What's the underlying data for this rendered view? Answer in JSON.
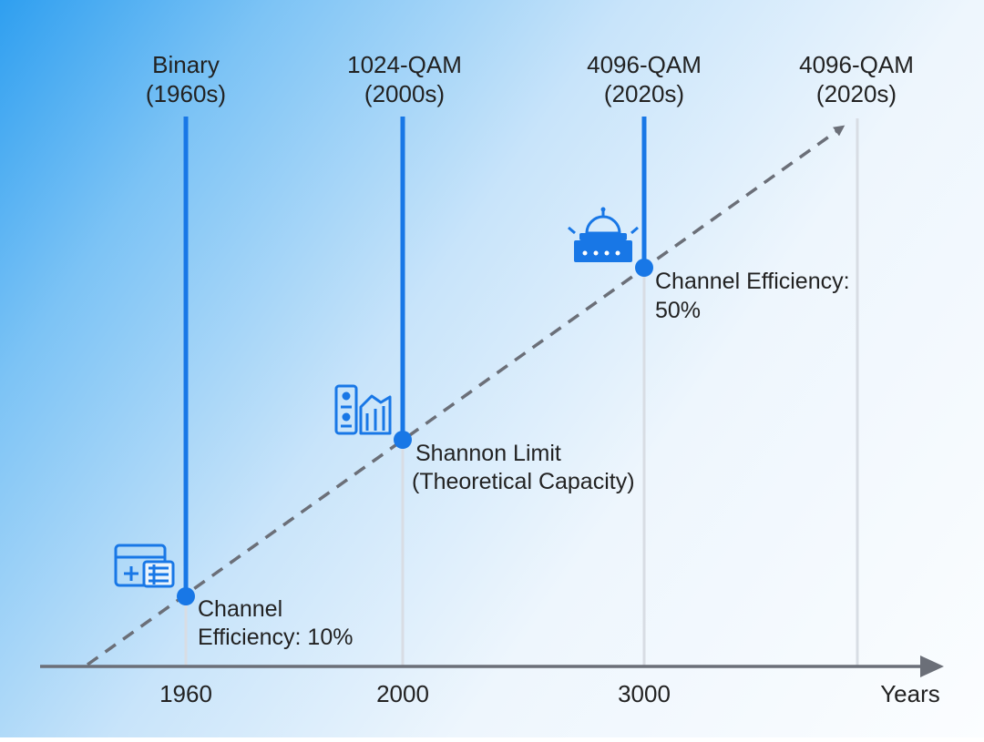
{
  "diagram": {
    "title_columns": [
      {
        "line1": "Binary",
        "line2": "(1960s)"
      },
      {
        "line1": "1024-QAM",
        "line2": "(2000s)"
      },
      {
        "line1": "4096-QAM",
        "line2": "(2020s)"
      },
      {
        "line1": "4096-QAM",
        "line2": "(2020s)"
      }
    ],
    "x_ticks": [
      "1960",
      "2000",
      "3000"
    ],
    "x_axis_label": "Years",
    "annotations": [
      {
        "line1": "Channel",
        "line2": "Efficiency: 10%"
      },
      {
        "line1": "Shannon Limit",
        "line2": "(Theoretical Capacity)"
      },
      {
        "line1": "Channel Efficiency:",
        "line2": "50%"
      }
    ],
    "icons": [
      "computer-window-icon",
      "server-chart-icon",
      "satellite-dish-icon"
    ],
    "colors": {
      "marker": "#1877e6",
      "guide_line": "#d8dde4",
      "trend_line": "#6b6f78",
      "axis": "#6b6f78"
    }
  }
}
